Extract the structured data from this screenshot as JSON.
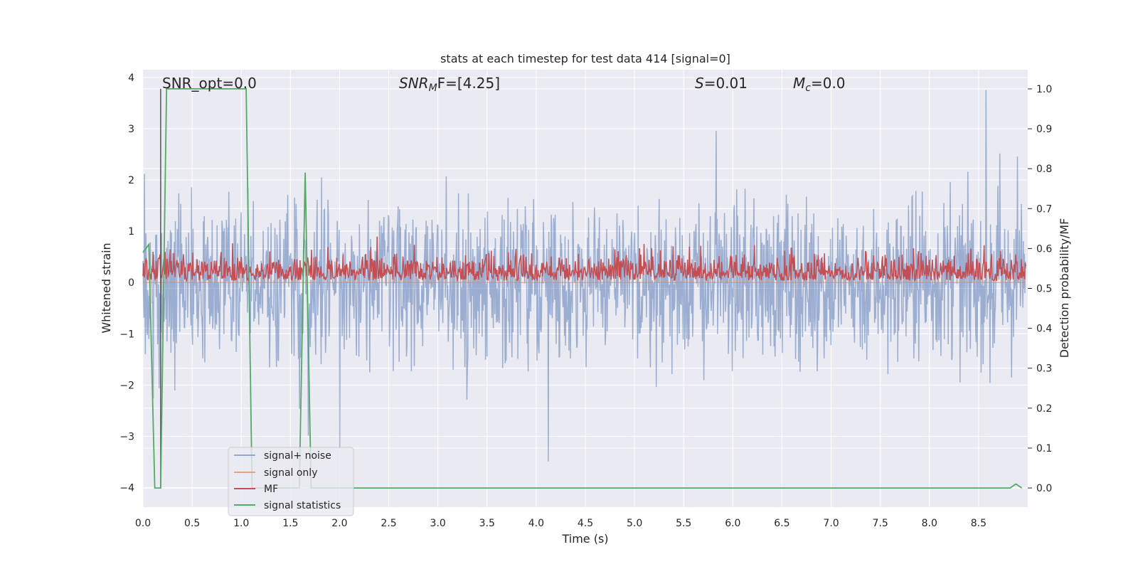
{
  "chart_data": {
    "type": "line",
    "title": "stats at each timestep for test data 414 [signal=0]",
    "xlabel": "Time (s)",
    "ylabel_left": "Whitened strain",
    "ylabel_right": "Detection probability/MF",
    "xlim": [
      0.0,
      9.0
    ],
    "ylim_left": [
      -4.38,
      4.15
    ],
    "ylim_right": [
      -0.048,
      1.048
    ],
    "x_ticks": [
      "0.0",
      "0.5",
      "1.0",
      "1.5",
      "2.0",
      "2.5",
      "3.0",
      "3.5",
      "4.0",
      "4.5",
      "5.0",
      "5.5",
      "6.0",
      "6.5",
      "7.0",
      "7.5",
      "8.0",
      "8.5"
    ],
    "y_ticks_left": [
      "4",
      "3",
      "2",
      "1",
      "0",
      "−1",
      "−2",
      "−3",
      "−4"
    ],
    "y_ticks_right": [
      "1.0",
      "0.9",
      "0.8",
      "0.7",
      "0.6",
      "0.5",
      "0.4",
      "0.3",
      "0.2",
      "0.1",
      "0.0"
    ],
    "grid": true,
    "legend_location": "lower-left",
    "annotations": {
      "snr_opt": "SNR_opt=0.0",
      "snr_mf_sym": "SNR",
      "snr_mf_sub": "M",
      "snr_mf_rest": "F=[4.25]",
      "s_sym": "S",
      "s_rest": "=0.01",
      "mc_sym": "M",
      "mc_sub": "c",
      "mc_rest": "=0.0"
    },
    "marker_line_x": 0.18,
    "series": [
      {
        "name": "signal+ noise",
        "axis": "left",
        "color": "#4c72b0",
        "description_values": {
          "envelope_upper_typical": 2.2,
          "envelope_lower_typical": -2.2,
          "max": 3.75,
          "min": -3.9
        }
      },
      {
        "name": "signal only",
        "axis": "left",
        "color": "#dd8452",
        "values_constant": 0.0
      },
      {
        "name": "MF",
        "axis": "right",
        "color": "#c44e52",
        "description_values": {
          "baseline": 0.52,
          "typical_peak": 0.6,
          "max": 0.63
        }
      },
      {
        "name": "signal statistics",
        "axis": "right",
        "color": "#55a868",
        "x": [
          0.0,
          0.06,
          0.12,
          0.18,
          0.24,
          0.3,
          1.05,
          1.11,
          1.17,
          1.23,
          1.29,
          1.35,
          1.41,
          1.47,
          1.53,
          1.59,
          1.65,
          1.71,
          1.77,
          1.83,
          8.82,
          8.88,
          8.94
        ],
        "y": [
          0.59,
          0.61,
          0.0,
          0.0,
          1.0,
          1.0,
          1.0,
          0.0,
          0.0,
          0.0,
          0.0,
          0.0,
          0.0,
          0.0,
          0.0,
          0.0,
          0.79,
          0.0,
          0.0,
          0.0,
          0.0,
          0.01,
          0.0
        ]
      }
    ]
  },
  "style": {
    "background": "#eaeaf2",
    "grid_color": "#ffffff",
    "text_color": "#262626"
  }
}
